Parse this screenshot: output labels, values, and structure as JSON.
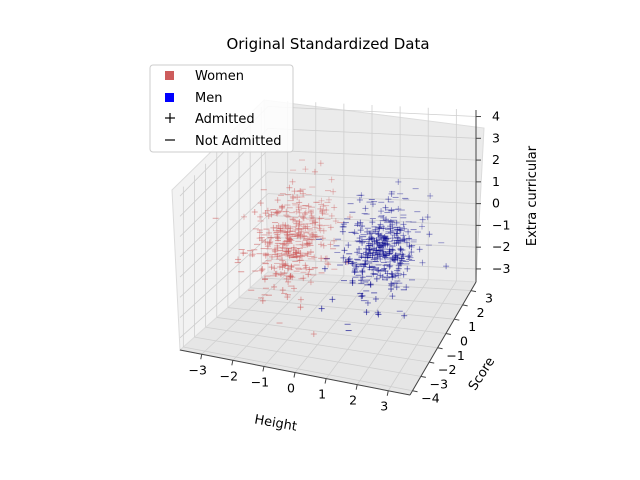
{
  "chart_data": {
    "type": "scatter",
    "title": "Original Standardized Data",
    "xlabel": "Height",
    "ylabel": "Score",
    "zlabel": "Extra curricular",
    "x_ticks": [
      "−3",
      "−2",
      "−1",
      "0",
      "1",
      "2",
      "3"
    ],
    "y_ticks": [
      "−4",
      "−3",
      "−2",
      "−1",
      "0",
      "1",
      "2",
      "3"
    ],
    "z_ticks": [
      "−3",
      "−2",
      "−1",
      "0",
      "1",
      "2",
      "3",
      "4"
    ],
    "xlim": [
      -3.7,
      3.7
    ],
    "ylim": [
      -4.3,
      3.6
    ],
    "zlim": [
      -3.6,
      4.3
    ],
    "grid": true,
    "legend": {
      "placement": "top-left",
      "entries": [
        {
          "label": "Women",
          "marker": "square",
          "color": "#cd5c5c"
        },
        {
          "label": "Men",
          "marker": "square",
          "color": "#0000ff"
        },
        {
          "label": "Admitted",
          "marker": "+",
          "color": "#000000"
        },
        {
          "label": "Not Admitted",
          "marker": "_",
          "color": "#000000"
        }
      ]
    },
    "series": [
      {
        "name": "Women",
        "color": "#cd5c5c",
        "x_center": -1.5,
        "y_center": 0.0,
        "z_center": 0.0,
        "count": 420
      },
      {
        "name": "Men",
        "color": "#00008b",
        "x_center": 1.5,
        "y_center": 0.0,
        "z_center": 0.0,
        "count": 420
      }
    ]
  }
}
